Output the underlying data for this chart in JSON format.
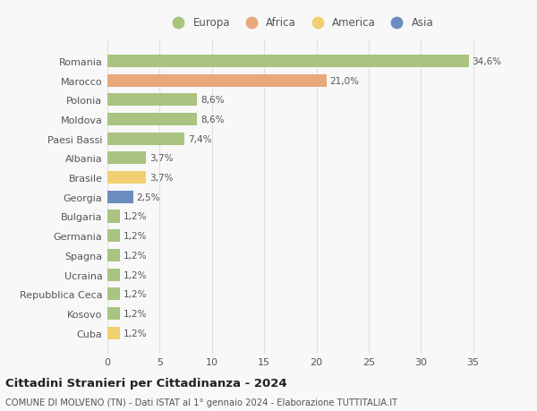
{
  "countries": [
    "Romania",
    "Marocco",
    "Polonia",
    "Moldova",
    "Paesi Bassi",
    "Albania",
    "Brasile",
    "Georgia",
    "Bulgaria",
    "Germania",
    "Spagna",
    "Ucraina",
    "Repubblica Ceca",
    "Kosovo",
    "Cuba"
  ],
  "values": [
    34.6,
    21.0,
    8.6,
    8.6,
    7.4,
    3.7,
    3.7,
    2.5,
    1.2,
    1.2,
    1.2,
    1.2,
    1.2,
    1.2,
    1.2
  ],
  "labels": [
    "34,6%",
    "21,0%",
    "8,6%",
    "8,6%",
    "7,4%",
    "3,7%",
    "3,7%",
    "2,5%",
    "1,2%",
    "1,2%",
    "1,2%",
    "1,2%",
    "1,2%",
    "1,2%",
    "1,2%"
  ],
  "colors": [
    "#a8c480",
    "#e8a87c",
    "#a8c480",
    "#a8c480",
    "#a8c480",
    "#a8c480",
    "#f0d070",
    "#6b8cbf",
    "#a8c480",
    "#a8c480",
    "#a8c480",
    "#a8c480",
    "#a8c480",
    "#a8c480",
    "#f0d070"
  ],
  "legend_labels": [
    "Europa",
    "Africa",
    "America",
    "Asia"
  ],
  "legend_colors": [
    "#a8c480",
    "#e8a87c",
    "#f0d070",
    "#6b8cbf"
  ],
  "title": "Cittadini Stranieri per Cittadinanza - 2024",
  "subtitle": "COMUNE DI MOLVENO (TN) - Dati ISTAT al 1° gennaio 2024 - Elaborazione TUTTITALIA.IT",
  "xlim": [
    0,
    37
  ],
  "xticks": [
    0,
    5,
    10,
    15,
    20,
    25,
    30,
    35
  ],
  "background_color": "#f8f8f8",
  "grid_color": "#e0e0e0",
  "bar_height": 0.65
}
